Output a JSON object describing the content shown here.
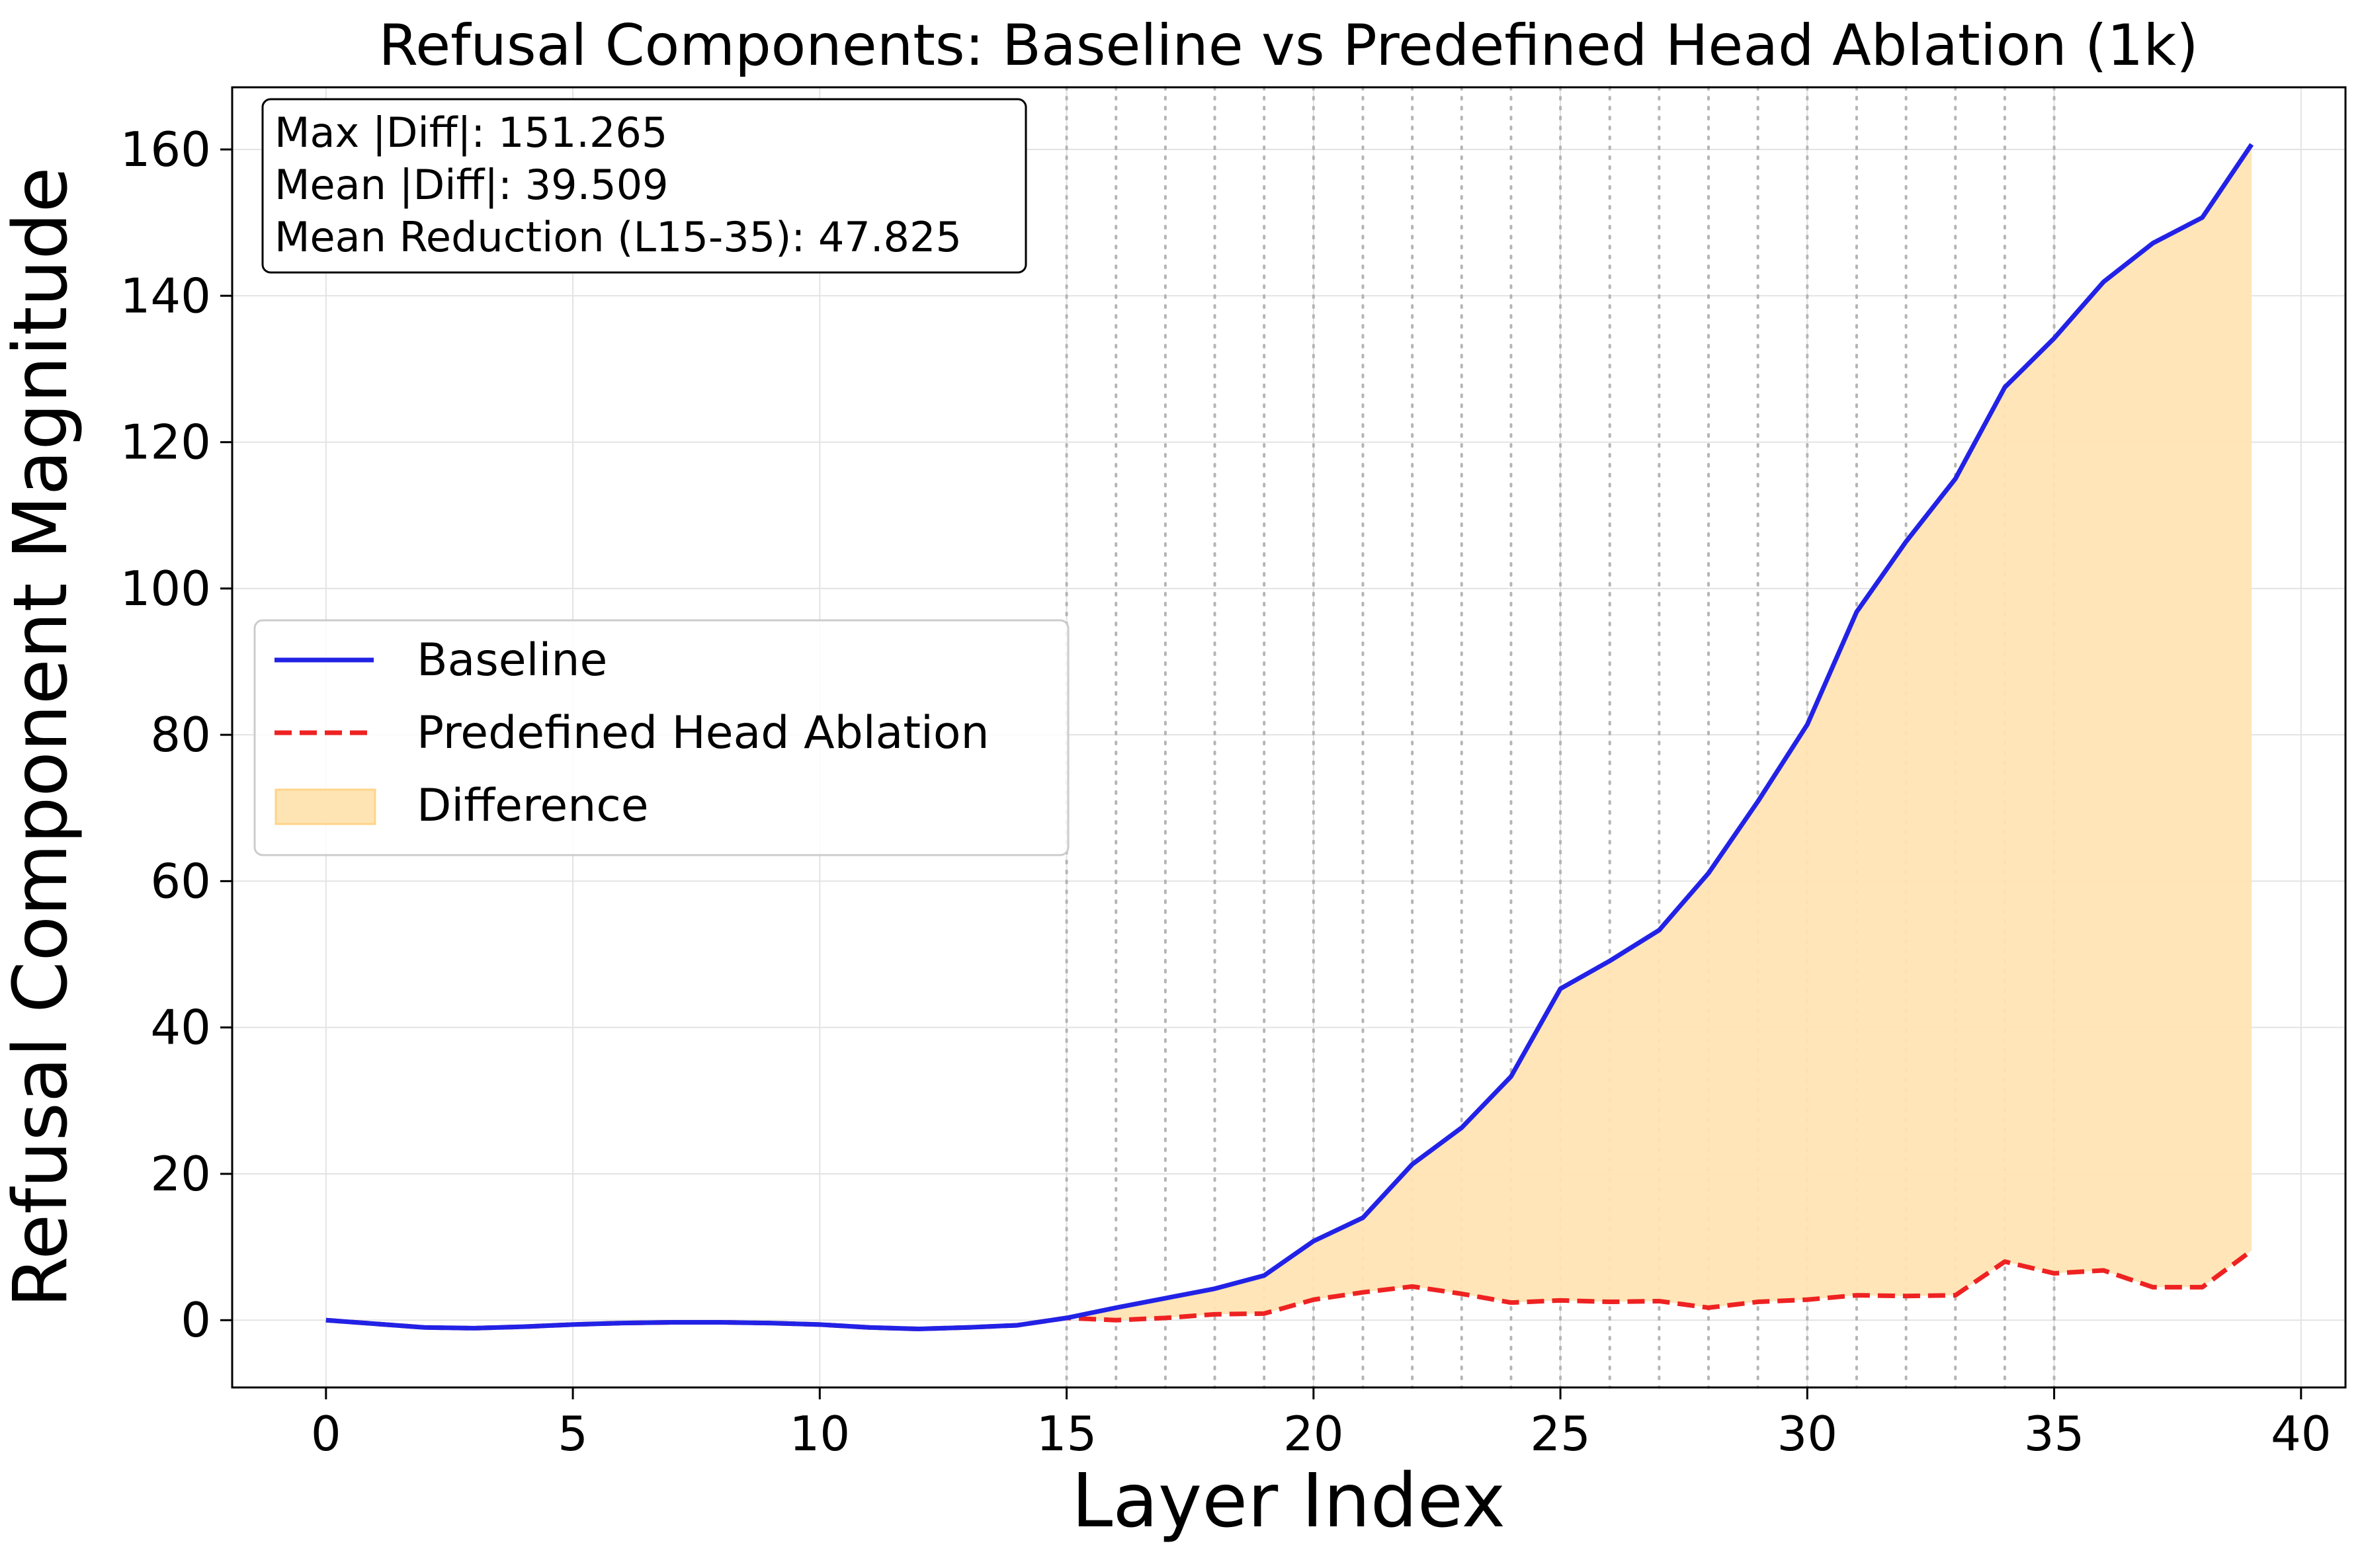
{
  "chart_data": {
    "type": "line",
    "title": "Refusal Components: Baseline vs Predefined Head Ablation (1k)",
    "xlabel": "Layer Index",
    "ylabel": "Refusal Component Magnitude",
    "xlim": [
      -1.9,
      40.9
    ],
    "ylim": [
      -9.2,
      168.5
    ],
    "xticks": [
      0,
      5,
      10,
      15,
      20,
      25,
      30,
      35,
      40
    ],
    "yticks": [
      0,
      20,
      40,
      60,
      80,
      100,
      120,
      140,
      160
    ],
    "grid": true,
    "highlight_layers": [
      15,
      16,
      17,
      18,
      19,
      20,
      21,
      22,
      23,
      24,
      25,
      26,
      27,
      28,
      29,
      30,
      31,
      32,
      33,
      34,
      35
    ],
    "x": [
      0,
      1,
      2,
      3,
      4,
      5,
      6,
      7,
      8,
      9,
      10,
      11,
      12,
      13,
      14,
      15,
      16,
      17,
      18,
      19,
      20,
      21,
      22,
      23,
      24,
      25,
      26,
      27,
      28,
      29,
      30,
      31,
      32,
      33,
      34,
      35,
      36,
      37,
      38,
      39
    ],
    "series": [
      {
        "name": "Baseline",
        "color": "#0000ff",
        "style": "solid",
        "values": [
          0.0,
          -0.5,
          -1.0,
          -1.1,
          -0.9,
          -0.6,
          -0.4,
          -0.3,
          -0.3,
          -0.4,
          -0.6,
          -1.0,
          -1.2,
          -1.0,
          -0.7,
          0.3,
          1.7,
          3.0,
          4.3,
          6.1,
          10.8,
          14.0,
          21.3,
          26.3,
          33.3,
          45.3,
          49.1,
          53.3,
          61.1,
          70.9,
          81.4,
          96.8,
          106.4,
          115.0,
          127.5,
          134.2,
          141.9,
          147.2,
          150.7,
          160.7
        ]
      },
      {
        "name": "Predefined Head Ablation",
        "color": "#ff0000",
        "style": "dashed",
        "values": [
          0.0,
          -0.5,
          -1.0,
          -1.1,
          -0.9,
          -0.6,
          -0.4,
          -0.3,
          -0.3,
          -0.4,
          -0.6,
          -1.0,
          -1.2,
          -1.0,
          -0.7,
          0.3,
          0.0,
          0.3,
          0.8,
          0.9,
          2.8,
          3.8,
          4.6,
          3.6,
          2.4,
          2.7,
          2.5,
          2.6,
          1.7,
          2.5,
          2.8,
          3.4,
          3.3,
          3.4,
          8.0,
          6.4,
          6.8,
          4.5,
          4.5,
          9.5
        ]
      }
    ],
    "fill": {
      "name": "Difference",
      "color": "#ffe4b3",
      "between": [
        "Baseline",
        "Predefined Head Ablation"
      ]
    },
    "legend": {
      "position": "center-left",
      "entries": [
        "Baseline",
        "Predefined Head Ablation",
        "Difference"
      ]
    },
    "stats_box": {
      "lines": [
        "Max |Diff|: 151.265",
        "Mean |Diff|: 39.509",
        "Mean Reduction (L15-35): 47.825"
      ]
    }
  }
}
